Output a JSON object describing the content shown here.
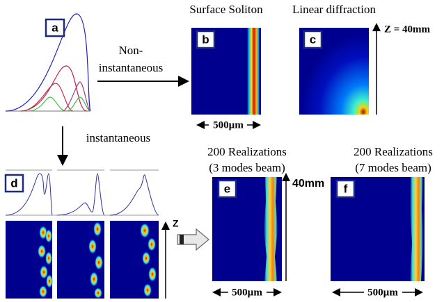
{
  "panels": {
    "a": {
      "label": "a"
    },
    "b": {
      "label": "b",
      "title": "Surface Soliton",
      "scale": "500µm"
    },
    "c": {
      "label": "c",
      "title": "Linear diffraction",
      "z": "Z = 40mm"
    },
    "d": {
      "label": "d",
      "z": "Z"
    },
    "e": {
      "label": "e",
      "title": [
        "200 Realizations",
        "(3 modes beam)"
      ],
      "z": "40mm",
      "scale": "500µm"
    },
    "f": {
      "label": "f",
      "title": [
        "200 Realizations",
        "(7 modes beam)"
      ],
      "scale": "500µm"
    }
  },
  "arrows": {
    "non_instantaneous": [
      "Non-",
      "instantaneous"
    ],
    "instantaneous": "instantaneous"
  }
}
